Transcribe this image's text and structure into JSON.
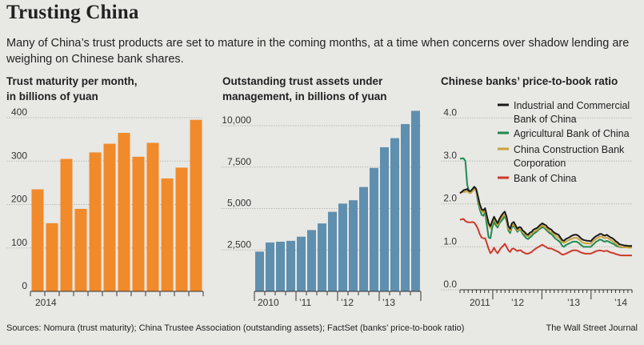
{
  "header": {
    "title": "Trusting China",
    "subtitle": "Many of China’s trust products are set to mature in the coming months, at a time when concerns over shadow lending are weighing on Chinese bank shares."
  },
  "chart_data": [
    {
      "type": "bar",
      "title": "Trust maturity per month, in billions of yuan",
      "title_lines": [
        "Trust maturity per month,",
        "in billions of yuan"
      ],
      "categories": [
        "2014-01",
        "2014-02",
        "2014-03",
        "2014-04",
        "2014-05",
        "2014-06",
        "2014-07",
        "2014-08",
        "2014-09",
        "2014-10",
        "2014-11",
        "2014-12"
      ],
      "values": [
        235,
        157,
        305,
        190,
        320,
        340,
        365,
        310,
        342,
        260,
        285,
        395
      ],
      "y_ticks": [
        0,
        100,
        200,
        300,
        400
      ],
      "x_labels": [
        "2014"
      ],
      "ylim": [
        0,
        400
      ],
      "color": "#f08a2b"
    },
    {
      "type": "bar",
      "title": "Outstanding trust assets under management, in billions of yuan",
      "title_lines": [
        "Outstanding trust assets under",
        "management, in billions of yuan"
      ],
      "categories": [
        "2010Q1",
        "2010Q2",
        "2010Q3",
        "2010Q4",
        "2011Q1",
        "2011Q2",
        "2011Q3",
        "2011Q4",
        "2012Q1",
        "2012Q2",
        "2012Q3",
        "2012Q4",
        "2013Q1",
        "2013Q2",
        "2013Q3",
        "2013Q4"
      ],
      "values": [
        2400,
        2950,
        3000,
        3050,
        3300,
        3700,
        4100,
        4800,
        5300,
        5500,
        6300,
        7450,
        8700,
        9250,
        10100,
        10900
      ],
      "y_ticks": [
        2500,
        5000,
        7500,
        10000
      ],
      "y_tick_labels": [
        "2,500",
        "5,000",
        "7,500",
        "10,000"
      ],
      "x_labels": [
        "2010",
        "’11",
        "’12",
        "’13"
      ],
      "ylim": [
        0,
        11500
      ],
      "color": "#5f8fae"
    },
    {
      "type": "line",
      "title": "Chinese banks’ price-to-book ratio",
      "y_ticks": [
        0.0,
        1.0,
        2.0,
        3.0,
        4.0
      ],
      "y_tick_labels": [
        "0.0",
        "1.0",
        "2.0",
        "3.0",
        "4.0"
      ],
      "x_labels": [
        "2011",
        "’12",
        "’13",
        "’14"
      ],
      "ylim": [
        0,
        4.4
      ],
      "x": [
        0,
        0.5,
        1,
        1.5,
        2,
        2.5,
        3,
        3.5,
        4,
        4.5,
        5,
        5.5,
        6,
        6.5,
        7,
        7.5,
        8,
        8.5,
        9,
        9.5,
        10,
        10.5,
        11,
        11.5,
        12,
        12.5,
        13,
        13.5,
        14,
        14.5,
        15,
        15.5,
        16,
        16.5,
        17,
        17.5,
        18,
        18.5,
        19,
        19.5,
        20,
        20.5,
        21,
        21.5,
        22,
        22.5,
        23,
        23.5,
        24,
        24.5,
        25,
        25.5,
        26,
        26.5,
        27,
        27.5,
        28,
        28.5,
        29,
        29.5,
        30,
        30.5,
        31,
        31.5,
        32,
        32.5,
        33,
        33.5,
        34,
        34.5,
        35,
        35.5,
        36,
        36.5,
        37,
        37.5,
        38,
        38.5,
        39,
        39.5,
        40,
        40.5,
        41,
        41.5,
        42,
        42.5,
        43,
        43.5,
        44,
        44.5,
        45,
        45.5,
        46,
        46.5,
        47,
        47.5,
        48
      ],
      "series": [
        {
          "name": "Industrial and Commercial Bank of China",
          "legend_lines": [
            "Industrial and Commercial",
            "Bank of China"
          ],
          "color": "#1a1a1a",
          "values": [
            2.25,
            2.28,
            2.32,
            2.33,
            2.35,
            2.3,
            2.3,
            2.35,
            2.4,
            2.35,
            2.18,
            2.0,
            1.88,
            1.85,
            1.9,
            1.72,
            1.55,
            1.48,
            1.6,
            1.7,
            1.62,
            1.55,
            1.65,
            1.72,
            1.78,
            1.82,
            1.7,
            1.48,
            1.42,
            1.55,
            1.58,
            1.5,
            1.42,
            1.46,
            1.45,
            1.38,
            1.35,
            1.3,
            1.28,
            1.33,
            1.35,
            1.4,
            1.42,
            1.44,
            1.48,
            1.52,
            1.55,
            1.52,
            1.5,
            1.45,
            1.42,
            1.4,
            1.35,
            1.32,
            1.3,
            1.28,
            1.22,
            1.16,
            1.14,
            1.18,
            1.2,
            1.22,
            1.25,
            1.27,
            1.28,
            1.28,
            1.26,
            1.22,
            1.18,
            1.16,
            1.15,
            1.14,
            1.14,
            1.13,
            1.18,
            1.22,
            1.25,
            1.27,
            1.3,
            1.3,
            1.27,
            1.26,
            1.28,
            1.25,
            1.22,
            1.2,
            1.17,
            1.13,
            1.1,
            1.06,
            1.05,
            1.04,
            1.03,
            1.03,
            1.02,
            1.02,
            1.02
          ]
        },
        {
          "name": "Agricultural Bank of China",
          "legend_lines": [
            "Agricultural Bank of China"
          ],
          "color": "#1e8a4f",
          "values": [
            3.05,
            3.06,
            3.06,
            3.0,
            2.45,
            2.3,
            2.28,
            2.3,
            2.38,
            2.32,
            2.05,
            1.88,
            1.75,
            1.72,
            1.8,
            1.5,
            1.22,
            1.2,
            1.45,
            1.58,
            1.5,
            1.45,
            1.55,
            1.6,
            1.65,
            1.72,
            1.6,
            1.38,
            1.32,
            1.46,
            1.48,
            1.42,
            1.35,
            1.4,
            1.38,
            1.3,
            1.25,
            1.2,
            1.18,
            1.22,
            1.25,
            1.3,
            1.33,
            1.36,
            1.4,
            1.43,
            1.46,
            1.44,
            1.4,
            1.36,
            1.32,
            1.3,
            1.25,
            1.2,
            1.17,
            1.14,
            1.1,
            1.03,
            1.0,
            1.04,
            1.06,
            1.08,
            1.1,
            1.12,
            1.12,
            1.12,
            1.1,
            1.06,
            1.03,
            1.0,
            1.0,
            1.0,
            1.0,
            1.0,
            1.04,
            1.08,
            1.12,
            1.14,
            1.17,
            1.16,
            1.13,
            1.12,
            1.14,
            1.12,
            1.1,
            1.08,
            1.06,
            1.03,
            1.01,
            1.0,
            0.99,
            0.99,
            0.99,
            1.0,
            1.0,
            1.0,
            1.0
          ]
        },
        {
          "name": "China Construction Bank Corporation",
          "legend_lines": [
            "China Construction Bank",
            "Corporation"
          ],
          "color": "#c9a23b",
          "values": [
            2.25,
            2.27,
            2.28,
            2.28,
            2.3,
            2.26,
            2.25,
            2.3,
            2.34,
            2.3,
            2.12,
            1.95,
            1.83,
            1.8,
            1.85,
            1.66,
            1.5,
            1.43,
            1.55,
            1.65,
            1.58,
            1.5,
            1.6,
            1.66,
            1.72,
            1.75,
            1.64,
            1.42,
            1.37,
            1.5,
            1.52,
            1.45,
            1.38,
            1.42,
            1.4,
            1.34,
            1.3,
            1.26,
            1.24,
            1.28,
            1.3,
            1.35,
            1.37,
            1.39,
            1.43,
            1.47,
            1.5,
            1.47,
            1.44,
            1.4,
            1.36,
            1.34,
            1.3,
            1.27,
            1.24,
            1.22,
            1.17,
            1.11,
            1.09,
            1.12,
            1.14,
            1.16,
            1.18,
            1.2,
            1.21,
            1.21,
            1.19,
            1.15,
            1.11,
            1.09,
            1.08,
            1.08,
            1.08,
            1.07,
            1.12,
            1.16,
            1.19,
            1.21,
            1.24,
            1.24,
            1.21,
            1.2,
            1.22,
            1.19,
            1.16,
            1.14,
            1.11,
            1.07,
            1.04,
            1.01,
            1.0,
            0.99,
            0.99,
            0.99,
            0.98,
            0.98,
            0.98
          ]
        },
        {
          "name": "Bank of China",
          "legend_lines": [
            "Bank of China"
          ],
          "color": "#cc3a2b",
          "values": [
            1.63,
            1.64,
            1.65,
            1.6,
            1.58,
            1.57,
            1.57,
            1.58,
            1.56,
            1.5,
            1.42,
            1.3,
            1.22,
            1.2,
            1.2,
            1.08,
            0.95,
            0.85,
            0.9,
            0.98,
            0.9,
            0.85,
            0.92,
            0.98,
            1.02,
            1.07,
            1.0,
            0.92,
            0.88,
            0.95,
            0.96,
            0.93,
            0.9,
            0.92,
            0.92,
            0.88,
            0.86,
            0.84,
            0.84,
            0.86,
            0.88,
            0.92,
            0.95,
            0.98,
            1.0,
            1.03,
            1.05,
            1.02,
            1.0,
            0.97,
            0.96,
            0.96,
            0.94,
            0.92,
            0.9,
            0.88,
            0.85,
            0.82,
            0.82,
            0.84,
            0.86,
            0.88,
            0.9,
            0.92,
            0.92,
            0.92,
            0.9,
            0.88,
            0.86,
            0.85,
            0.84,
            0.84,
            0.84,
            0.84,
            0.86,
            0.88,
            0.9,
            0.91,
            0.92,
            0.91,
            0.9,
            0.9,
            0.91,
            0.89,
            0.87,
            0.86,
            0.85,
            0.83,
            0.82,
            0.81,
            0.8,
            0.8,
            0.8,
            0.8,
            0.8,
            0.8,
            0.8
          ]
        }
      ]
    }
  ],
  "footer": {
    "sources": "Sources: Nomura (trust maturity); China Trustee Association (outstanding assets); FactSet (banks’ price-to-book ratio)",
    "credit": "The Wall Street Journal"
  }
}
